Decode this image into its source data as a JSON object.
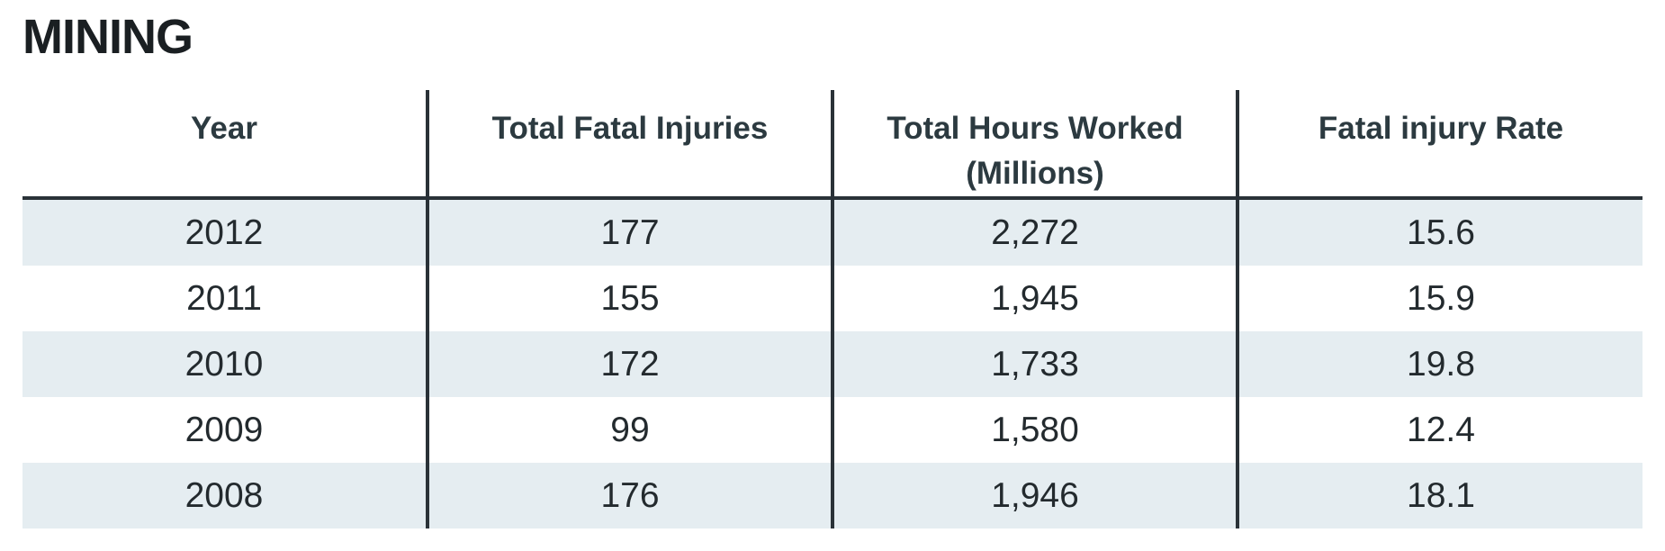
{
  "chart_data": {
    "type": "table",
    "title": "MINING",
    "columns": [
      "Year",
      "Total Fatal Injuries",
      "Total Hours Worked (Millions)",
      "Fatal injury Rate"
    ],
    "header_lines": [
      [
        "Year"
      ],
      [
        "Total Fatal Injuries"
      ],
      [
        "Total Hours Worked",
        "(Millions)"
      ],
      [
        "Fatal injury Rate"
      ]
    ],
    "rows": [
      [
        "2012",
        "177",
        "2,272",
        "15.6"
      ],
      [
        "2011",
        "155",
        "1,945",
        "15.9"
      ],
      [
        "2010",
        "172",
        "1,733",
        "19.8"
      ],
      [
        "2009",
        "99",
        "1,580",
        "12.4"
      ],
      [
        "2008",
        "176",
        "1,946",
        "18.1"
      ]
    ],
    "colors": {
      "row_stripe": "#e5edf1",
      "rule": "#2a3238"
    }
  }
}
